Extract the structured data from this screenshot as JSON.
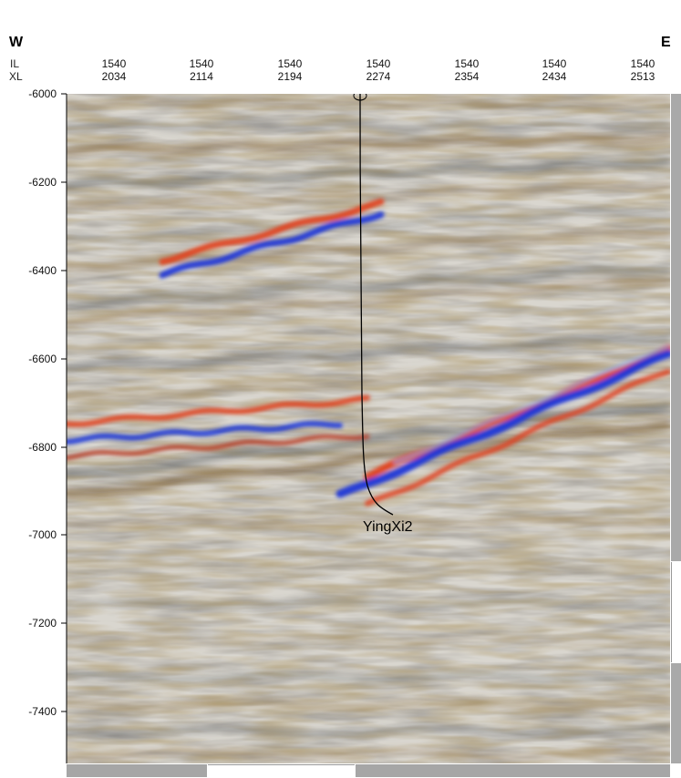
{
  "header": {
    "west": "W",
    "east": "E",
    "il_key": "IL",
    "xl_key": "XL"
  },
  "x_ticks": [
    {
      "il": "1540",
      "xl": "2034"
    },
    {
      "il": "1540",
      "xl": "2114"
    },
    {
      "il": "1540",
      "xl": "2194"
    },
    {
      "il": "1540",
      "xl": "2274"
    },
    {
      "il": "1540",
      "xl": "2354"
    },
    {
      "il": "1540",
      "xl": "2434"
    },
    {
      "il": "1540",
      "xl": "2513"
    }
  ],
  "y_ticks": [
    "-6000",
    "-6200",
    "-6400",
    "-6600",
    "-6800",
    "-7000",
    "-7200",
    "-7400"
  ],
  "well": {
    "name": "YingXi2"
  },
  "colors": {
    "positive_strong": "#e0401c",
    "positive_soft": "#8a6a3c",
    "negative_strong": "#1a35d8",
    "negative_soft": "#6f7378",
    "background": "#d6d3cc"
  }
}
